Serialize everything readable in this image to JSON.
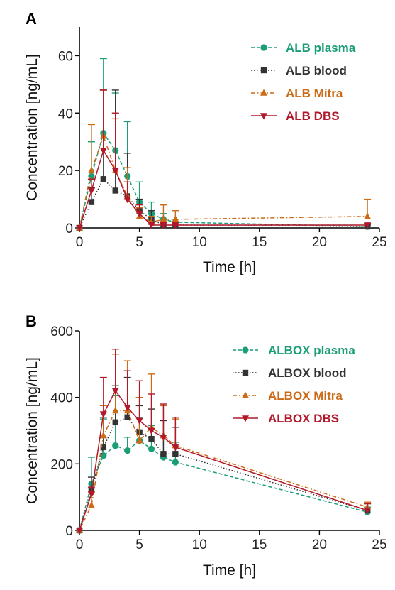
{
  "chart_data": [
    {
      "panel": "A",
      "type": "line",
      "xlabel": "Time [h]",
      "ylabel": "Concentration [ng/mL]",
      "xlim": [
        0,
        25
      ],
      "ylim": [
        0,
        70
      ],
      "xticks": [
        "0",
        "5",
        "10",
        "15",
        "20",
        "25"
      ],
      "yticks": [
        "0",
        "20",
        "40",
        "60"
      ],
      "legend_position": "top-right",
      "series": [
        {
          "name": "ALB plasma",
          "color": "#1b9e77",
          "marker": "circle",
          "dash": "dashed",
          "x": [
            0,
            1,
            2,
            3,
            4,
            5,
            6,
            7,
            8,
            24
          ],
          "y": [
            0,
            18,
            33,
            27,
            18,
            9,
            5,
            3,
            2,
            0.5
          ],
          "err": [
            0,
            12,
            26,
            20,
            19,
            7,
            4,
            2,
            1,
            1
          ]
        },
        {
          "name": "ALB blood",
          "color": "#333333",
          "marker": "square",
          "dash": "dotted",
          "x": [
            0,
            1,
            2,
            3,
            4,
            5,
            6,
            7,
            8,
            24
          ],
          "y": [
            0,
            9,
            17,
            13,
            11,
            6,
            3,
            1,
            1,
            0.5
          ],
          "err": [
            0,
            5,
            31,
            35,
            15,
            4,
            3,
            1,
            1,
            0.5
          ]
        },
        {
          "name": "ALB Mitra",
          "color": "#cc6a16",
          "marker": "triangle-up",
          "dash": "dashdot",
          "x": [
            0,
            1,
            2,
            3,
            4,
            5,
            6,
            7,
            8,
            24
          ],
          "y": [
            0,
            20,
            32,
            20,
            11,
            4,
            2,
            3,
            3,
            4
          ],
          "err": [
            0,
            16,
            16,
            18,
            10,
            3,
            2,
            5,
            3,
            6
          ]
        },
        {
          "name": "ALB DBS",
          "color": "#b2182b",
          "marker": "triangle-down",
          "dash": "solid",
          "x": [
            0,
            1,
            2,
            3,
            4,
            5,
            6,
            7,
            8,
            24
          ],
          "y": [
            0,
            13,
            27,
            20,
            10,
            5,
            1,
            1,
            1,
            1
          ],
          "err": [
            0,
            4,
            21,
            20,
            6,
            3,
            1,
            1,
            1,
            0.5
          ]
        }
      ]
    },
    {
      "panel": "B",
      "type": "line",
      "xlabel": "Time [h]",
      "ylabel": "Concentration [ng/mL]",
      "xlim": [
        0,
        25
      ],
      "ylim": [
        0,
        600
      ],
      "xticks": [
        "0",
        "5",
        "10",
        "15",
        "20",
        "25"
      ],
      "yticks": [
        "0",
        "200",
        "400",
        "600"
      ],
      "legend_position": "top-right",
      "series": [
        {
          "name": "ALBOX plasma",
          "color": "#1b9e77",
          "marker": "circle",
          "dash": "dashed",
          "x": [
            0,
            1,
            2,
            3,
            4,
            5,
            6,
            7,
            8,
            24
          ],
          "y": [
            0,
            140,
            225,
            255,
            240,
            270,
            245,
            220,
            205,
            55
          ],
          "err": [
            0,
            80,
            110,
            150,
            40,
            70,
            70,
            60,
            60,
            15
          ]
        },
        {
          "name": "ALBOX blood",
          "color": "#333333",
          "marker": "square",
          "dash": "dotted",
          "x": [
            0,
            1,
            2,
            3,
            4,
            5,
            6,
            7,
            8,
            24
          ],
          "y": [
            0,
            120,
            250,
            325,
            340,
            295,
            275,
            230,
            230,
            60
          ],
          "err": [
            0,
            40,
            90,
            110,
            120,
            80,
            90,
            100,
            80,
            20
          ]
        },
        {
          "name": "ALBOX Mitra",
          "color": "#cc6a16",
          "marker": "triangle-up",
          "dash": "dashdot",
          "x": [
            0,
            1,
            2,
            3,
            4,
            5,
            6,
            7,
            8,
            24
          ],
          "y": [
            0,
            75,
            285,
            360,
            360,
            270,
            310,
            285,
            255,
            70
          ],
          "err": [
            0,
            40,
            90,
            170,
            150,
            130,
            160,
            90,
            80,
            15
          ]
        },
        {
          "name": "ALBOX DBS",
          "color": "#b2182b",
          "marker": "triangle-down",
          "dash": "solid",
          "x": [
            0,
            1,
            2,
            3,
            4,
            5,
            6,
            7,
            8,
            24
          ],
          "y": [
            0,
            110,
            350,
            420,
            370,
            330,
            300,
            280,
            250,
            60
          ],
          "err": [
            0,
            20,
            110,
            125,
            110,
            120,
            110,
            100,
            90,
            20
          ]
        }
      ]
    }
  ]
}
